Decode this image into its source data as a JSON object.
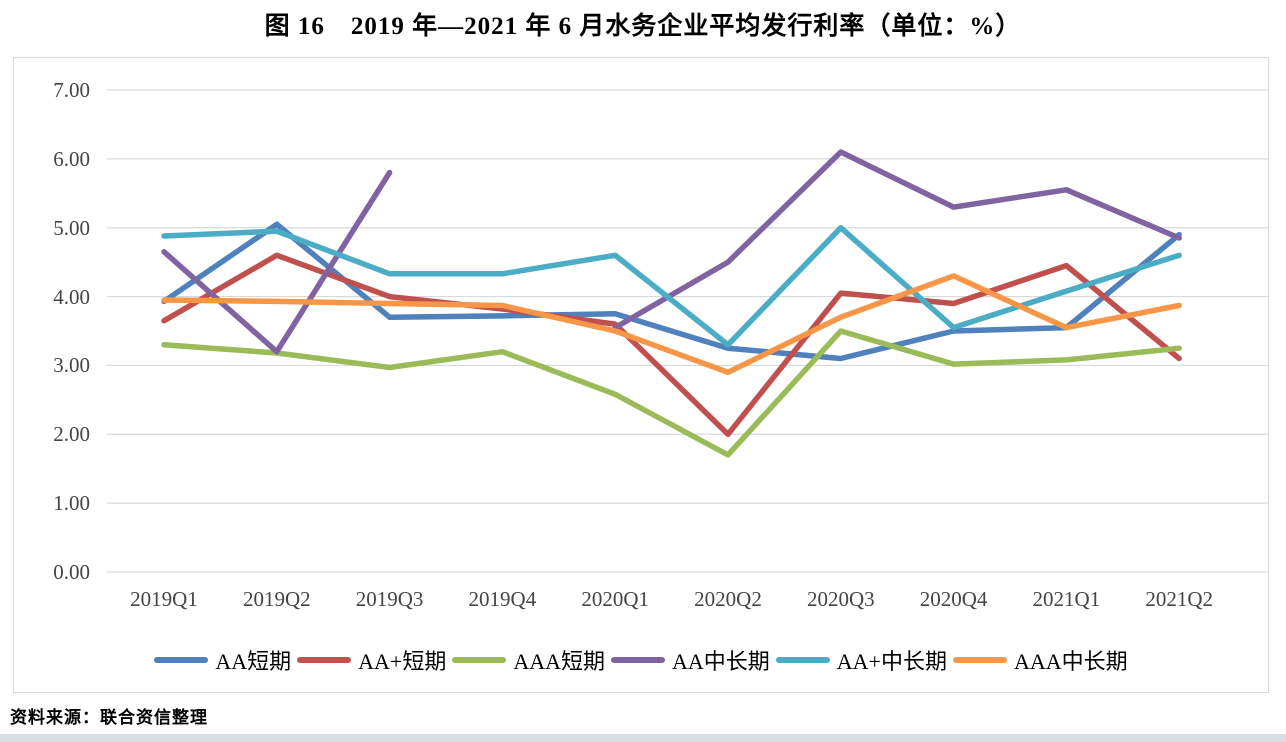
{
  "title": "图 16　2019 年—2021 年 6 月水务企业平均发行利率（单位：%）",
  "source_note": "资料来源：联合资信整理",
  "chart_data": {
    "type": "line",
    "title": "图 16　2019 年—2021 年 6 月水务企业平均发行利率（单位：%）",
    "xlabel": "",
    "ylabel": "",
    "ylim": [
      0,
      7
    ],
    "ytick_labels": [
      "7.00",
      "6.00",
      "5.00",
      "4.00",
      "3.00",
      "2.00",
      "1.00",
      "0.00"
    ],
    "grid": true,
    "legend_position": "bottom",
    "categories": [
      "2019Q1",
      "2019Q2",
      "2019Q3",
      "2019Q4",
      "2020Q1",
      "2020Q2",
      "2020Q3",
      "2020Q4",
      "2021Q1",
      "2021Q2"
    ],
    "series": [
      {
        "id": "aa-short",
        "name": "AA短期",
        "color": "#4F81BD",
        "values": [
          3.93,
          5.05,
          3.7,
          3.72,
          3.75,
          3.25,
          3.1,
          3.5,
          3.55,
          4.9
        ]
      },
      {
        "id": "aa-plus-short",
        "name": "AA+短期",
        "color": "#C0504D",
        "values": [
          3.65,
          4.6,
          4.0,
          3.82,
          3.6,
          2.0,
          4.05,
          3.9,
          4.45,
          3.1
        ]
      },
      {
        "id": "aaa-short",
        "name": "AAA短期",
        "color": "#9BBB59",
        "values": [
          3.3,
          3.18,
          2.97,
          3.2,
          2.58,
          1.7,
          3.5,
          3.02,
          3.08,
          3.25
        ]
      },
      {
        "id": "aa-mid-long",
        "name": "AA中长期",
        "color": "#8064A2",
        "values": [
          4.65,
          3.2,
          5.8,
          null,
          3.55,
          4.5,
          6.1,
          5.3,
          5.55,
          4.85
        ]
      },
      {
        "id": "aa-plus-mid-long",
        "name": "AA+中长期",
        "color": "#4BACC6",
        "values": [
          4.88,
          4.95,
          4.33,
          4.33,
          4.6,
          3.3,
          5.0,
          3.55,
          4.08,
          4.6
        ]
      },
      {
        "id": "aaa-mid-long",
        "name": "AAA中长期",
        "color": "#F79646",
        "values": [
          3.95,
          3.93,
          3.9,
          3.87,
          3.5,
          2.9,
          3.7,
          4.3,
          3.55,
          3.87
        ]
      }
    ]
  },
  "style": {
    "grid_color": "#d9d9d9",
    "frame_border_color": "#d9d9d9",
    "tick_color": "#454545",
    "line_width": 5.5
  }
}
